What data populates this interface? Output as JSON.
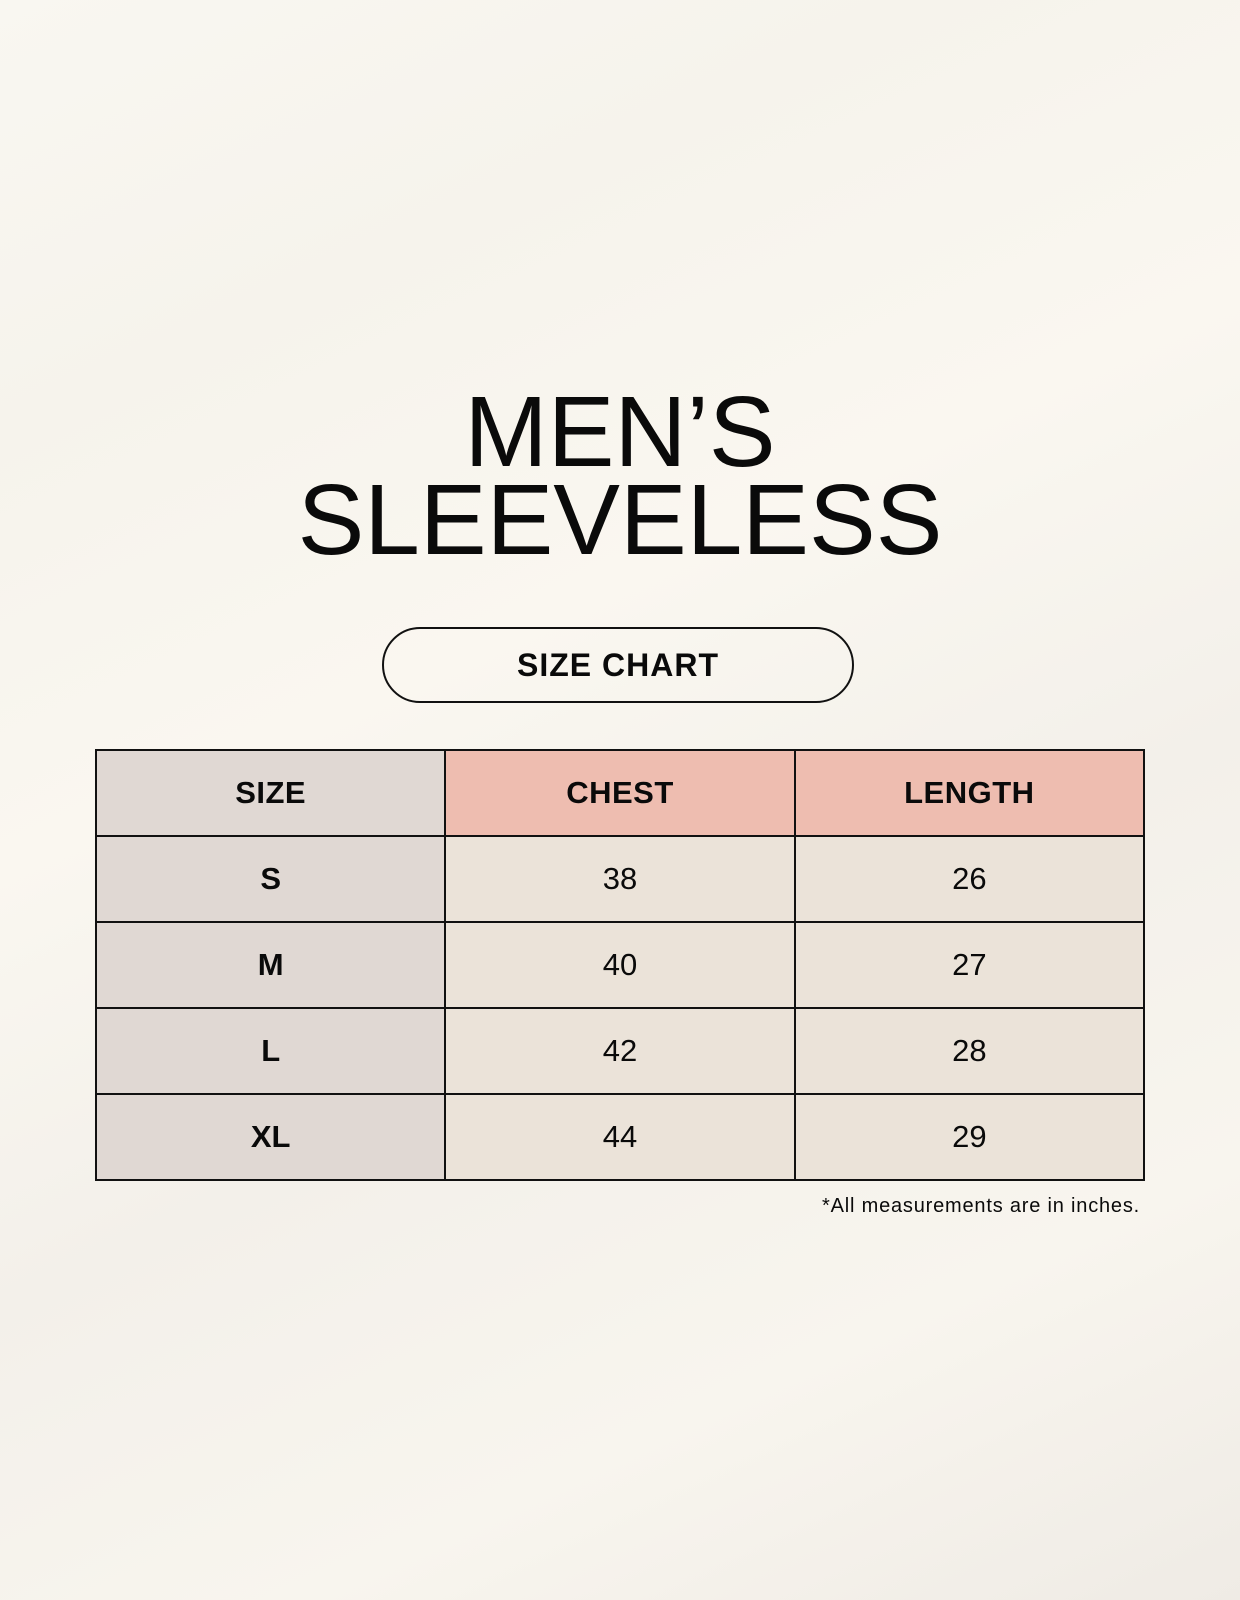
{
  "title": {
    "line1": "MEN’S",
    "line2": "SLEEVELESS"
  },
  "badge": "SIZE CHART",
  "table": {
    "headers": [
      "SIZE",
      "CHEST",
      "LENGTH"
    ],
    "rows": [
      [
        "S",
        "38",
        "26"
      ],
      [
        "M",
        "40",
        "27"
      ],
      [
        "L",
        "42",
        "28"
      ],
      [
        "XL",
        "44",
        "29"
      ]
    ]
  },
  "note": "*All measurements are in inches.",
  "colors": {
    "size_column": "#e0d8d3",
    "header": "#eebdb0",
    "cell": "#ebe3d9",
    "background": "#f9f6ef"
  }
}
